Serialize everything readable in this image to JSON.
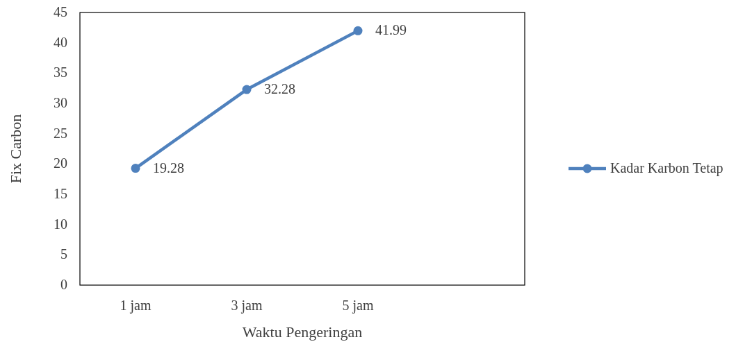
{
  "chart_data": {
    "type": "line",
    "xlabel": "Waktu Pengeringan",
    "ylabel": "Fix Carbon",
    "categories": [
      "1 jam",
      "3 jam",
      "5 jam",
      null
    ],
    "series": [
      {
        "name": "Kadar Karbon Tetap",
        "color": "#4f81bd",
        "values": [
          19.28,
          32.28,
          41.99,
          null
        ]
      }
    ],
    "ylim": [
      0,
      45
    ],
    "yticks": [
      0,
      5,
      10,
      15,
      20,
      25,
      30,
      35,
      40,
      45
    ],
    "data_labels": true,
    "legend": "right",
    "marker": "circle",
    "line_style": "solid"
  }
}
